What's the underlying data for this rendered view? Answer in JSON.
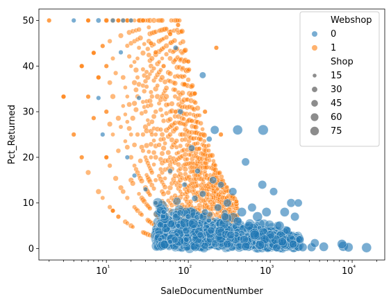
{
  "chart_data": {
    "type": "scatter",
    "xlabel": "SaleDocumentNumber",
    "ylabel": "Pct_Returned",
    "xscale": "log",
    "xlim": [
      1.5,
      25000
    ],
    "ylim": [
      -2.5,
      52.5
    ],
    "xticks": [
      {
        "value": 10,
        "label": "10¹"
      },
      {
        "value": 100,
        "label": "10²"
      },
      {
        "value": 1000,
        "label": "10³"
      },
      {
        "value": 10000,
        "label": "10⁴"
      }
    ],
    "yticks": [
      0,
      10,
      20,
      30,
      40,
      50
    ],
    "grid": false,
    "colors": {
      "webshop_0": "#1f77b4",
      "webshop_1": "#ff7f0e"
    },
    "legend": {
      "placement": "top-right",
      "hue_title": "Webshop",
      "hue_items": [
        {
          "label": "0",
          "color": "#1f77b4"
        },
        {
          "label": "1",
          "color": "#ff7f0e"
        }
      ],
      "size_title": "Shop",
      "size_items": [
        {
          "label": "15",
          "value": 15
        },
        {
          "label": "30",
          "value": 30
        },
        {
          "label": "45",
          "value": 45
        },
        {
          "label": "60",
          "value": 60
        },
        {
          "label": "75",
          "value": 75
        }
      ]
    },
    "series": [
      {
        "name": "0",
        "points": [
          {
            "x": 4,
            "y": 50,
            "shop": 10
          },
          {
            "x": 8,
            "y": 50,
            "shop": 12
          },
          {
            "x": 12,
            "y": 50,
            "shop": 10
          },
          {
            "x": 16,
            "y": 50,
            "shop": 10
          },
          {
            "x": 20,
            "y": 50,
            "shop": 10
          },
          {
            "x": 15,
            "y": 43,
            "shop": 10
          },
          {
            "x": 8,
            "y": 33,
            "shop": 10
          },
          {
            "x": 9,
            "y": 25,
            "shop": 10
          },
          {
            "x": 70,
            "y": 44,
            "shop": 12
          },
          {
            "x": 150,
            "y": 38,
            "shop": 20
          },
          {
            "x": 80,
            "y": 30,
            "shop": 15
          },
          {
            "x": 210,
            "y": 26,
            "shop": 35
          },
          {
            "x": 400,
            "y": 26,
            "shop": 45
          },
          {
            "x": 820,
            "y": 26,
            "shop": 50
          },
          {
            "x": 180,
            "y": 24,
            "shop": 15
          },
          {
            "x": 500,
            "y": 19,
            "shop": 30
          },
          {
            "x": 110,
            "y": 22,
            "shop": 20
          },
          {
            "x": 800,
            "y": 14,
            "shop": 35
          },
          {
            "x": 1100,
            "y": 12.5,
            "shop": 30
          },
          {
            "x": 1800,
            "y": 10,
            "shop": 35
          },
          {
            "x": 2200,
            "y": 10,
            "shop": 30
          },
          {
            "x": 1500,
            "y": 8,
            "shop": 40
          },
          {
            "x": 2000,
            "y": 7,
            "shop": 35
          },
          {
            "x": 2300,
            "y": 2,
            "shop": 30
          },
          {
            "x": 3200,
            "y": 0.3,
            "shop": 35
          },
          {
            "x": 4500,
            "y": 0.4,
            "shop": 40
          },
          {
            "x": 3500,
            "y": 1.2,
            "shop": 35
          },
          {
            "x": 7800,
            "y": 0.5,
            "shop": 45
          },
          {
            "x": 9000,
            "y": 0.3,
            "shop": 40
          },
          {
            "x": 15000,
            "y": 0.2,
            "shop": 45
          },
          {
            "x": 7500,
            "y": 1.0,
            "shop": 40
          },
          {
            "x": 1200,
            "y": 0.2,
            "shop": 30
          },
          {
            "x": 2500,
            "y": 0.3,
            "shop": 35
          },
          {
            "x": 600,
            "y": 9,
            "shop": 35
          },
          {
            "x": 900,
            "y": 8,
            "shop": 40
          },
          {
            "x": 700,
            "y": 7,
            "shop": 45
          },
          {
            "x": 450,
            "y": 8,
            "shop": 40
          },
          {
            "x": 350,
            "y": 12.5,
            "shop": 30
          },
          {
            "x": 300,
            "y": 10,
            "shop": 30
          },
          {
            "x": 250,
            "y": 14,
            "shop": 20
          },
          {
            "x": 200,
            "y": 15,
            "shop": 25
          },
          {
            "x": 150,
            "y": 12,
            "shop": 20
          },
          {
            "x": 120,
            "y": 11,
            "shop": 18
          },
          {
            "x": 1300,
            "y": 5,
            "shop": 40
          },
          {
            "x": 1600,
            "y": 4,
            "shop": 30
          },
          {
            "x": 1000,
            "y": 3,
            "shop": 35
          },
          {
            "x": 550,
            "y": 5,
            "shop": 40
          },
          {
            "x": 400,
            "y": 6,
            "shop": 35
          },
          {
            "x": 280,
            "y": 7,
            "shop": 30
          },
          {
            "x": 160,
            "y": 8,
            "shop": 20
          },
          {
            "x": 100,
            "y": 7,
            "shop": 15
          },
          {
            "x": 75,
            "y": 5,
            "shop": 12
          },
          {
            "x": 50,
            "y": 8,
            "shop": 12
          },
          {
            "x": 40,
            "y": 10,
            "shop": 10
          },
          {
            "x": 30,
            "y": 13,
            "shop": 10
          },
          {
            "x": 22,
            "y": 16,
            "shop": 10
          },
          {
            "x": 18,
            "y": 20,
            "shop": 10
          },
          {
            "x": 25,
            "y": 33,
            "shop": 10
          },
          {
            "x": 60,
            "y": 17,
            "shop": 12
          },
          {
            "x": 130,
            "y": 17,
            "shop": 14
          },
          {
            "x": 90,
            "y": 14,
            "shop": 12
          },
          {
            "x": 230,
            "y": 9,
            "shop": 25
          },
          {
            "x": 650,
            "y": 3,
            "shop": 45
          },
          {
            "x": 850,
            "y": 2,
            "shop": 40
          },
          {
            "x": 1400,
            "y": 1.5,
            "shop": 35
          },
          {
            "x": 1900,
            "y": 1,
            "shop": 30
          },
          {
            "x": 480,
            "y": 2,
            "shop": 35
          },
          {
            "x": 330,
            "y": 3,
            "shop": 30
          },
          {
            "x": 190,
            "y": 4,
            "shop": 25
          },
          {
            "x": 140,
            "y": 3,
            "shop": 20
          },
          {
            "x": 95,
            "y": 2,
            "shop": 15
          },
          {
            "x": 60,
            "y": 1.5,
            "shop": 12
          },
          {
            "x": 45,
            "y": 2,
            "shop": 10
          },
          {
            "x": 300,
            "y": 1,
            "shop": 30
          },
          {
            "x": 500,
            "y": 0.5,
            "shop": 35
          },
          {
            "x": 750,
            "y": 0.8,
            "shop": 40
          }
        ]
      },
      {
        "name": "1",
        "points": [
          {
            "x": 2,
            "y": 50,
            "shop": 10
          },
          {
            "x": 3,
            "y": 33.3,
            "shop": 10
          },
          {
            "x": 4,
            "y": 25,
            "shop": 10
          },
          {
            "x": 5,
            "y": 20,
            "shop": 10
          },
          {
            "x": 5,
            "y": 40,
            "shop": 10
          },
          {
            "x": 6,
            "y": 33.3,
            "shop": 10
          },
          {
            "x": 7,
            "y": 28.6,
            "shop": 10
          },
          {
            "x": 7,
            "y": 42.9,
            "shop": 10
          },
          {
            "x": 8,
            "y": 37.5,
            "shop": 10
          },
          {
            "x": 9,
            "y": 44.4,
            "shop": 10
          },
          {
            "x": 10,
            "y": 20,
            "shop": 10
          },
          {
            "x": 10,
            "y": 30,
            "shop": 10
          },
          {
            "x": 10,
            "y": 40,
            "shop": 10
          },
          {
            "x": 10,
            "y": 50,
            "shop": 10
          },
          {
            "x": 12,
            "y": 8.3,
            "shop": 10
          },
          {
            "x": 14,
            "y": 7,
            "shop": 10
          },
          {
            "x": 6,
            "y": 50,
            "shop": 10
          },
          {
            "x": 14,
            "y": 50,
            "shop": 10
          },
          {
            "x": 18,
            "y": 50,
            "shop": 10
          },
          {
            "x": 25,
            "y": 50,
            "shop": 10
          },
          {
            "x": 28,
            "y": 50,
            "shop": 10
          },
          {
            "x": 35,
            "y": 45,
            "shop": 10
          },
          {
            "x": 40,
            "y": 43,
            "shop": 10
          },
          {
            "x": 50,
            "y": 40,
            "shop": 10
          },
          {
            "x": 60,
            "y": 47,
            "shop": 10
          },
          {
            "x": 75,
            "y": 49,
            "shop": 10
          },
          {
            "x": 100,
            "y": 41,
            "shop": 10
          },
          {
            "x": 220,
            "y": 44,
            "shop": 10
          },
          {
            "x": 90,
            "y": 36,
            "shop": 10
          },
          {
            "x": 120,
            "y": 34,
            "shop": 10
          },
          {
            "x": 160,
            "y": 30,
            "shop": 10
          },
          {
            "x": 250,
            "y": 25,
            "shop": 10
          },
          {
            "x": 70,
            "y": 30,
            "shop": 10
          },
          {
            "x": 110,
            "y": 28,
            "shop": 10
          }
        ]
      }
    ],
    "scatter_cloud": {
      "seed": 7
    }
  }
}
